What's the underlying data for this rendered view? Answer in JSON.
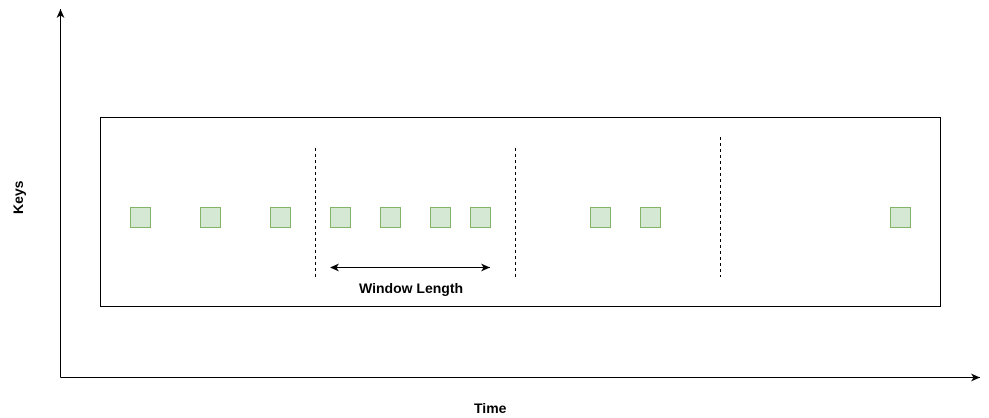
{
  "axes": {
    "x_label": "Time",
    "y_label": "Keys"
  },
  "window": {
    "label": "Window Length"
  },
  "events": {
    "count": 10,
    "fill_color": "#d5e8d4",
    "stroke_color": "#82b366"
  },
  "colors": {
    "line": "#000000",
    "background": "#ffffff"
  }
}
